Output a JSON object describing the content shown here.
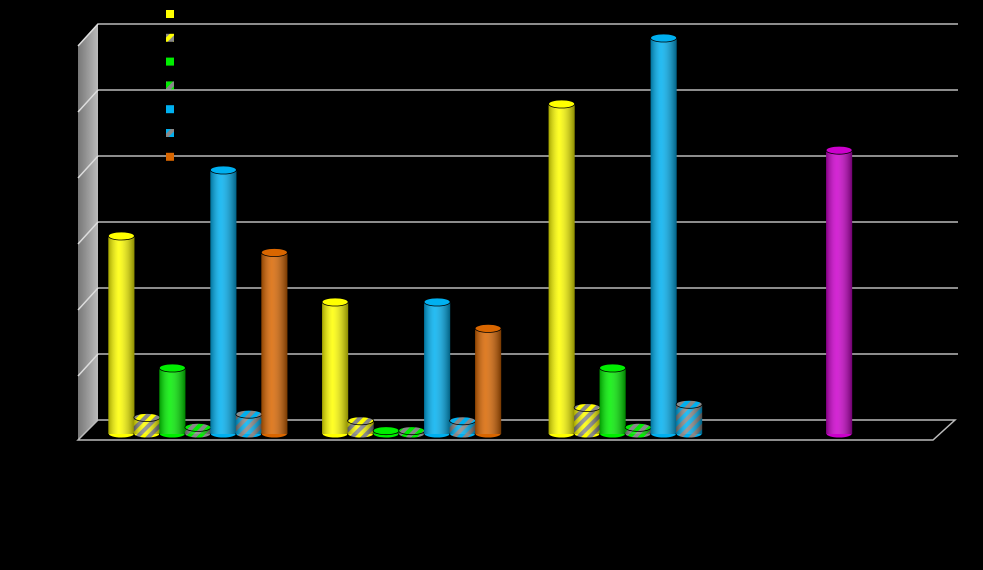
{
  "chart_data": {
    "type": "bar3d",
    "categories": [
      null,
      null,
      null,
      null
    ],
    "series": [
      {
        "color": "#ffff00",
        "values": [
          3.0,
          2.0,
          5.0,
          null
        ]
      },
      {
        "color": "#ffff00",
        "pattern": "striped",
        "values": [
          0.25,
          0.2,
          0.4,
          null
        ]
      },
      {
        "color": "#00ee00",
        "values": [
          1.0,
          0.05,
          1.0,
          null
        ]
      },
      {
        "color": "#00ee00",
        "pattern": "striped",
        "values": [
          0.1,
          0.05,
          0.1,
          null
        ]
      },
      {
        "color": "#00b0f0",
        "values": [
          4.0,
          2.0,
          6.0,
          null
        ]
      },
      {
        "color": "#00b0f0",
        "pattern": "striped",
        "values": [
          0.3,
          0.2,
          0.45,
          null
        ]
      },
      {
        "color": "#d96600",
        "values": [
          2.75,
          1.6,
          null,
          null
        ]
      },
      {
        "color": "#cc00cc",
        "in_legend": false,
        "values": [
          null,
          null,
          null,
          4.3
        ]
      }
    ],
    "ylim": [
      0,
      6
    ],
    "yticks": [
      0,
      1,
      2,
      3,
      4,
      5,
      6
    ],
    "tick_labels": false,
    "grid": true,
    "legend": "top-left"
  }
}
